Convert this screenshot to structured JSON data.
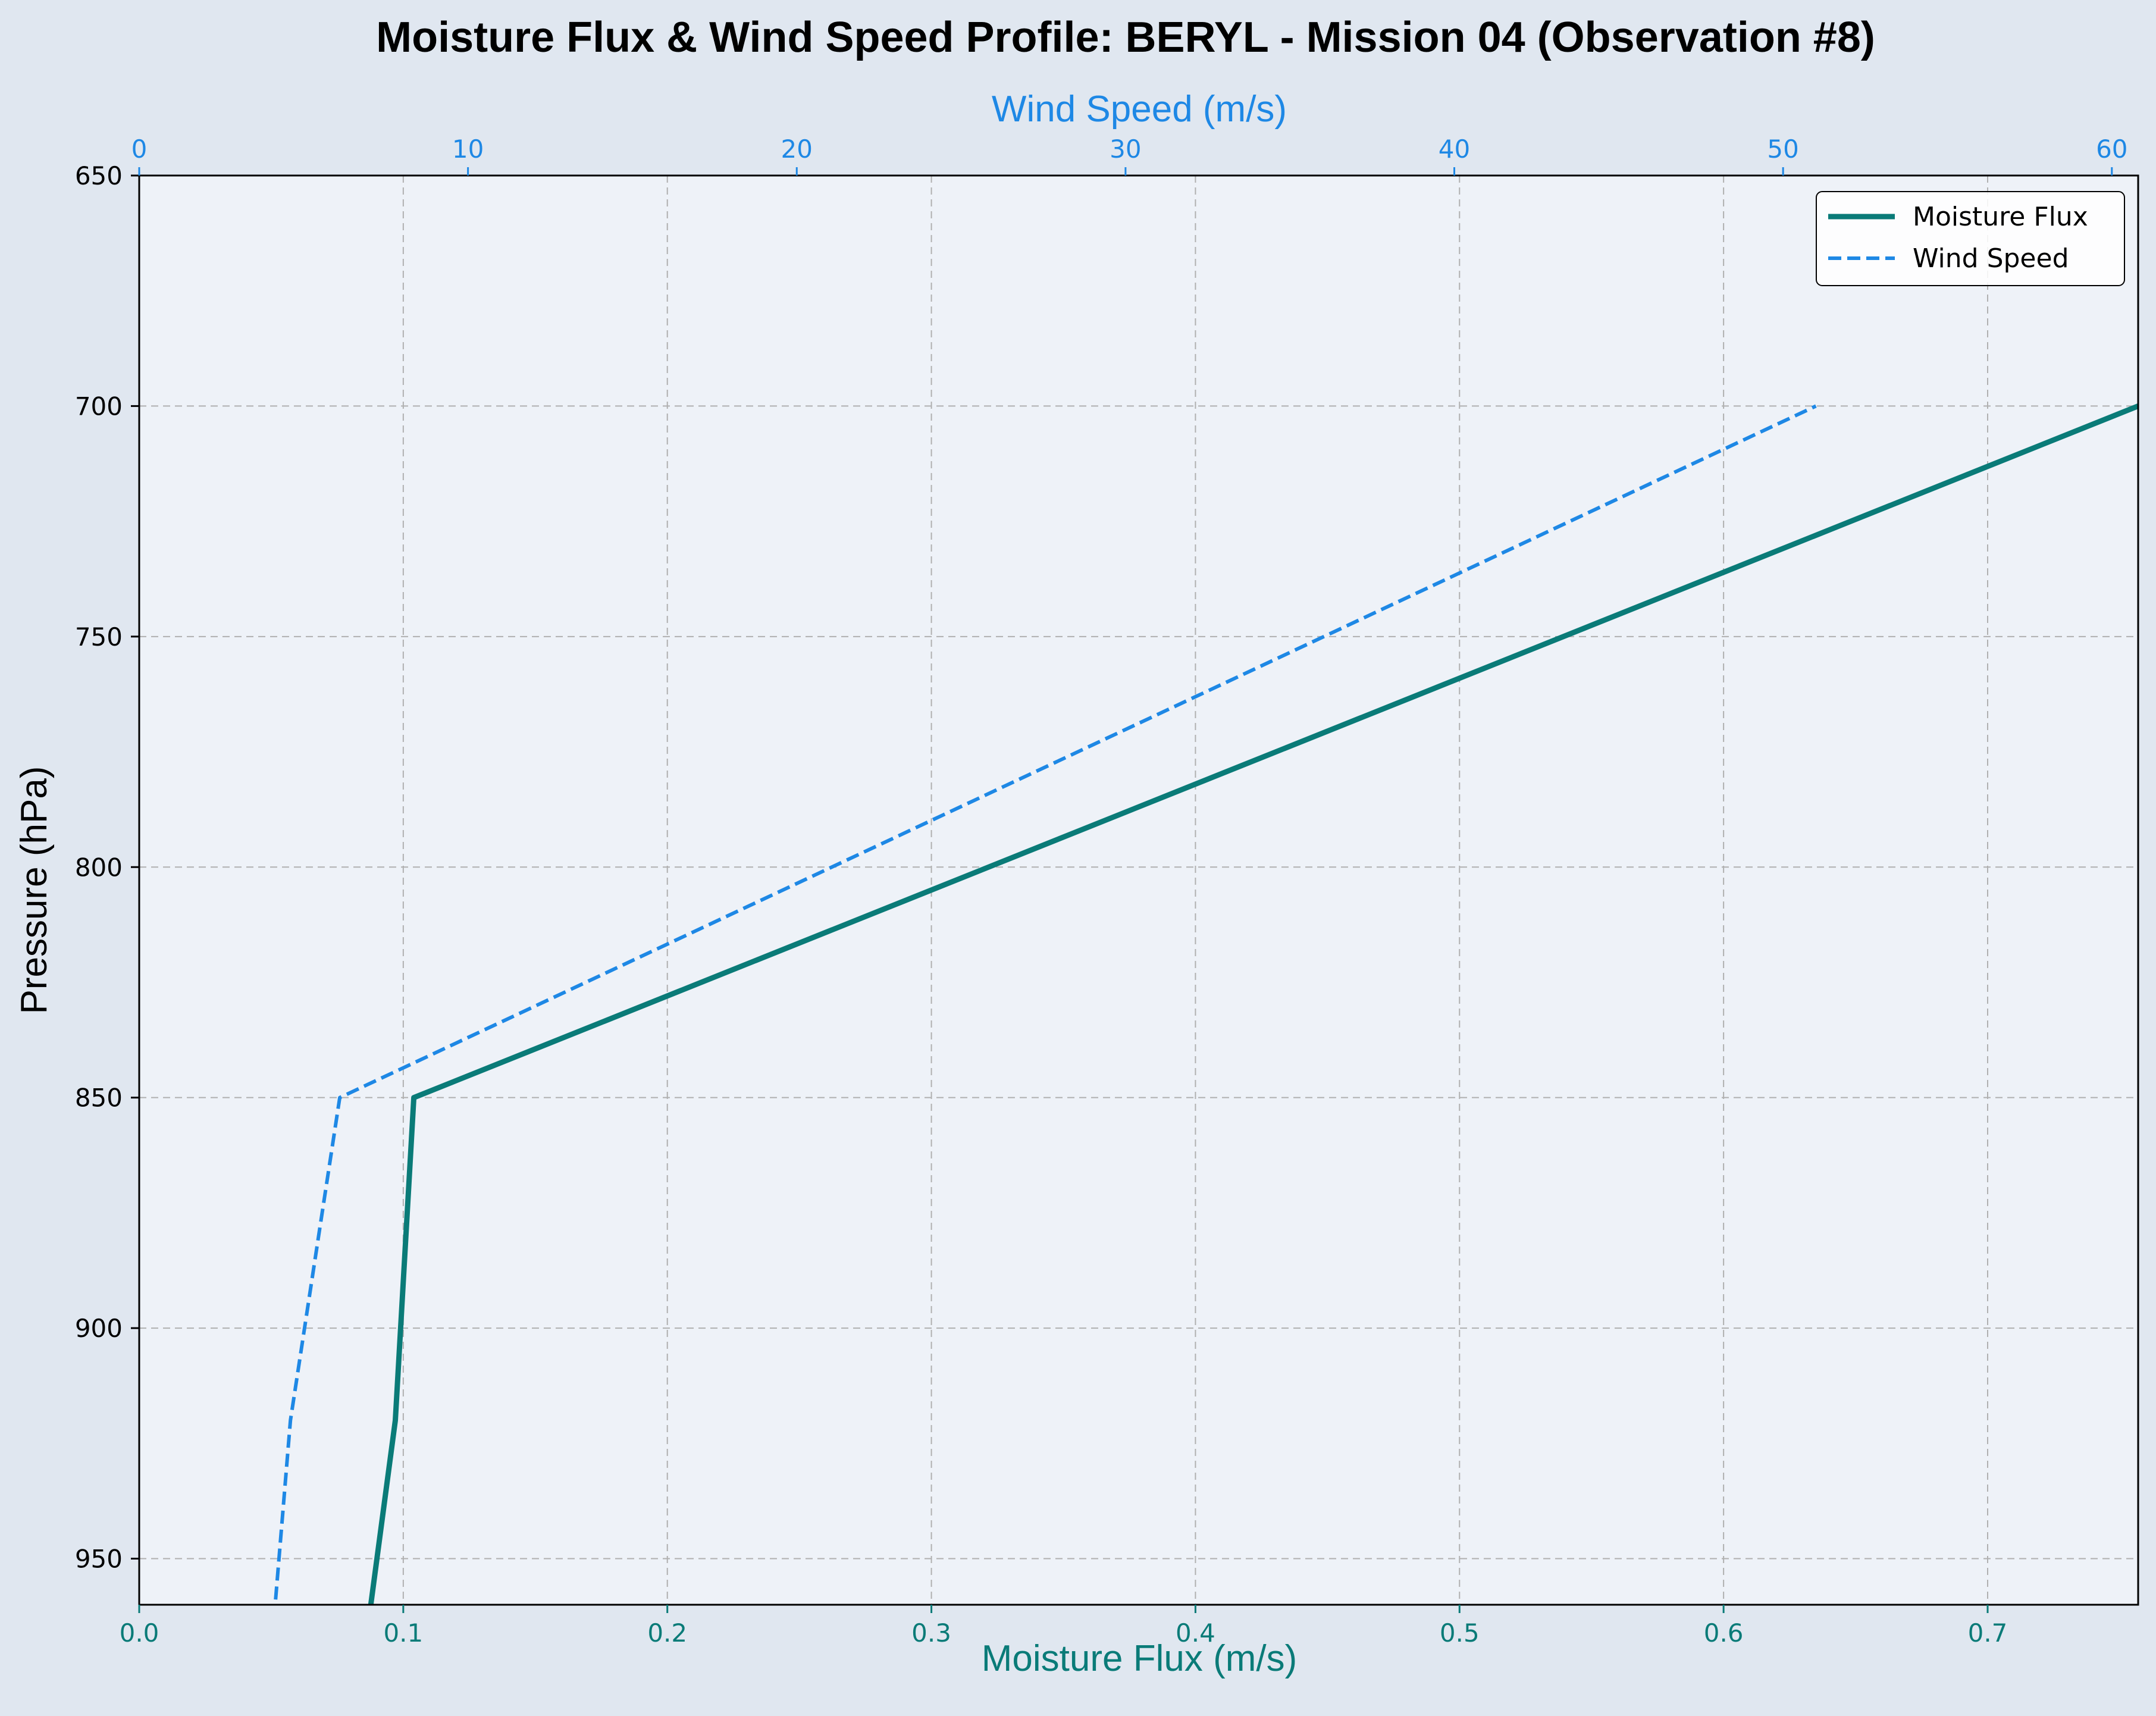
{
  "colors": {
    "background": "#e0e7f0",
    "plot_background": "#eef2f8",
    "grid": "#b0b0b0",
    "moisture": "#0a7b78",
    "wind": "#1e88e5",
    "text": "#000000"
  },
  "chart_data": {
    "type": "line",
    "title": "Moisture Flux & Wind Speed Profile: BERYL - Mission 04 (Observation #8)",
    "ylabel": "Pressure (hPa)",
    "xlabel_bottom": "Moisture Flux (m/s)",
    "xlabel_top": "Wind Speed (m/s)",
    "ylim": [
      960,
      650
    ],
    "y_inverted": true,
    "xlim_bottom": [
      0.0,
      0.757
    ],
    "xlim_top": [
      0,
      60.8
    ],
    "y_ticks": [
      650,
      700,
      750,
      800,
      850,
      900,
      950
    ],
    "x_bottom_ticks": [
      "0.0",
      "0.1",
      "0.2",
      "0.3",
      "0.4",
      "0.5",
      "0.6",
      "0.7"
    ],
    "x_top_ticks": [
      "0",
      "10",
      "20",
      "30",
      "40",
      "50",
      "60"
    ],
    "grid": true,
    "legend_position": "top-right",
    "series": [
      {
        "name": "Moisture Flux",
        "axis": "bottom",
        "style": "solid",
        "x": [
          0.087,
          0.097,
          0.104,
          0.757
        ],
        "y": [
          963,
          920,
          850,
          700
        ]
      },
      {
        "name": "Wind Speed",
        "axis": "top",
        "style": "dashed",
        "x": [
          4.1,
          4.6,
          6.1,
          51.0
        ],
        "y": [
          963,
          920,
          850,
          700
        ]
      }
    ]
  }
}
